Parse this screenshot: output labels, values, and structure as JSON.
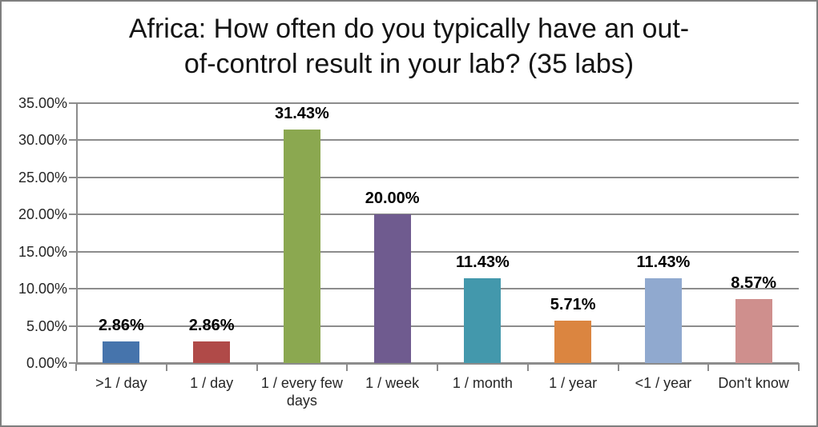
{
  "window": {
    "background_color": "#ffffff",
    "border_color": "#7f7f7f"
  },
  "chart_data": {
    "type": "bar",
    "title": "Africa: How often do you typically have an out-of-control result in your lab? (35 labs)",
    "title_lines": [
      "Africa: How often do you typically have an out-",
      "of-control result in your lab? (35 labs)"
    ],
    "categories": [
      ">1 / day",
      "1 / day",
      "1 / every few days",
      "1 / week",
      "1 / month",
      "1 / year",
      "<1 / year",
      "Don't know"
    ],
    "values": [
      2.86,
      2.86,
      31.43,
      20.0,
      11.43,
      5.71,
      11.43,
      8.57
    ],
    "data_labels": [
      "2.86%",
      "2.86%",
      "31.43%",
      "20.00%",
      "11.43%",
      "5.71%",
      "11.43%",
      "8.57%"
    ],
    "bar_colors": [
      "#4674ac",
      "#b04a48",
      "#8ba850",
      "#6f5b8f",
      "#4398ac",
      "#db8540",
      "#90a9cf",
      "#cf8f8d"
    ],
    "xlabel": "",
    "ylabel": "",
    "ylim": [
      0,
      35
    ],
    "y_tick_labels": [
      "0.00%",
      "5.00%",
      "10.00%",
      "15.00%",
      "20.00%",
      "25.00%",
      "30.00%",
      "35.00%"
    ],
    "grid": true,
    "legend": "none",
    "gridline_color": "#8c8c8c",
    "label_color": "#262626"
  }
}
